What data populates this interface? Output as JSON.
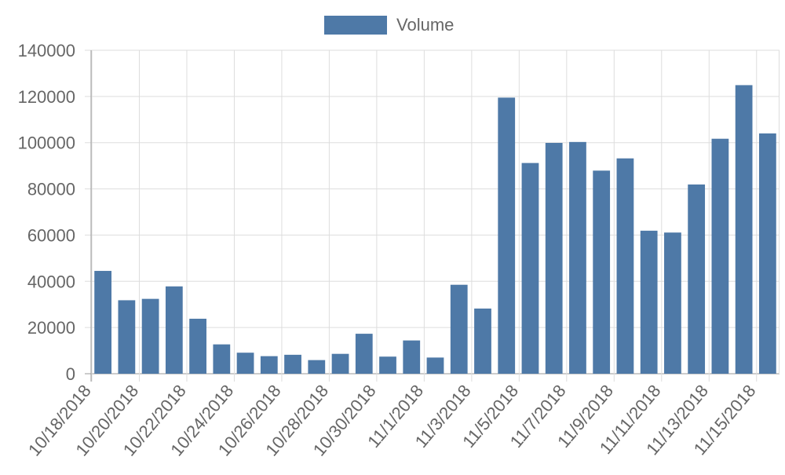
{
  "chart_data": {
    "type": "bar",
    "legend": {
      "label": "Volume",
      "placement": "top-center"
    },
    "color": "#4e79a7",
    "grid": true,
    "ylim": [
      0,
      140000
    ],
    "yticks": [
      "0",
      "20000",
      "40000",
      "60000",
      "80000",
      "100000",
      "120000",
      "140000"
    ],
    "tick_labels": [
      "10/18/2018",
      "10/20/2018",
      "10/22/2018",
      "10/24/2018",
      "10/26/2018",
      "10/28/2018",
      "10/30/2018",
      "11/1/2018",
      "11/3/2018",
      "11/5/2018",
      "11/7/2018",
      "11/9/2018",
      "11/11/2018",
      "11/13/2018",
      "11/15/2018"
    ],
    "categories": [
      "10/18/2018",
      "10/19/2018",
      "10/20/2018",
      "10/21/2018",
      "10/22/2018",
      "10/23/2018",
      "10/24/2018",
      "10/25/2018",
      "10/26/2018",
      "10/27/2018",
      "10/28/2018",
      "10/29/2018",
      "10/30/2018",
      "10/31/2018",
      "11/1/2018",
      "11/2/2018",
      "11/3/2018",
      "11/4/2018",
      "11/5/2018",
      "11/6/2018",
      "11/7/2018",
      "11/8/2018",
      "11/9/2018",
      "11/10/2018",
      "11/11/2018",
      "11/12/2018",
      "11/13/2018",
      "11/14/2018",
      "11/15/2018"
    ],
    "series": [
      {
        "name": "Volume",
        "values": [
          44500,
          31800,
          32400,
          37800,
          23800,
          12700,
          9100,
          7600,
          8200,
          5900,
          8600,
          17300,
          7400,
          14400,
          7000,
          38500,
          28200,
          119500,
          91200,
          99900,
          100300,
          87900,
          93200,
          61900,
          61100,
          81900,
          101700,
          124900,
          104000
        ]
      }
    ]
  }
}
